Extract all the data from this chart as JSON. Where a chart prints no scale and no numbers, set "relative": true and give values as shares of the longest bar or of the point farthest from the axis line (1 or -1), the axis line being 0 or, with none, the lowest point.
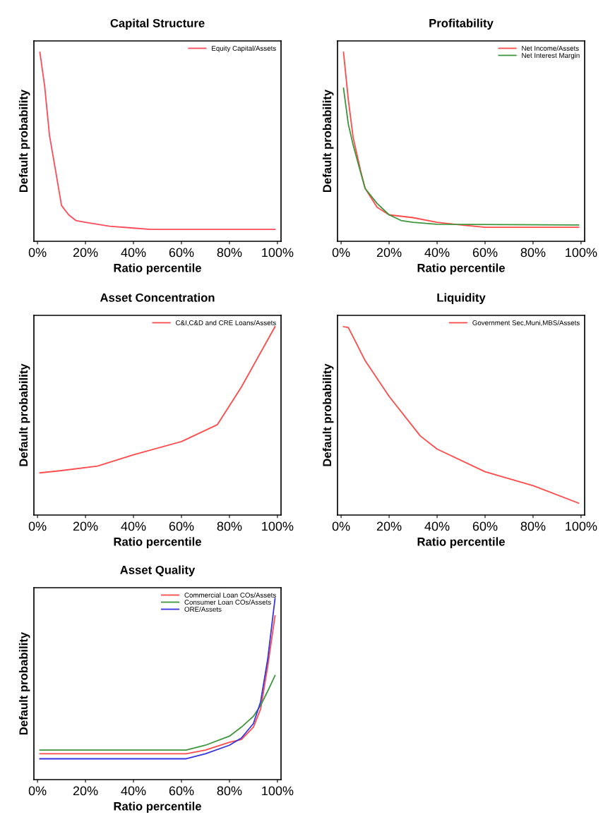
{
  "chart_data": [
    {
      "type": "line",
      "title": "Capital Structure",
      "xlabel": "Ratio percentile",
      "ylabel": "Default probability",
      "relative": true,
      "legend": "top right",
      "grid": false,
      "xlim": [
        -1.5,
        101.5
      ],
      "xticks": [
        {
          "value": 0,
          "label": "0%"
        },
        {
          "value": 20,
          "label": "20%"
        },
        {
          "value": 40,
          "label": "40%"
        },
        {
          "value": 60,
          "label": "60%"
        },
        {
          "value": 80,
          "label": "80%"
        },
        {
          "value": 100,
          "label": "100%"
        }
      ],
      "x": [
        1,
        3,
        5,
        8,
        10,
        13,
        16,
        20,
        30,
        40,
        47,
        99
      ],
      "series": [
        {
          "name": "Equity Capital/Assets",
          "color": "#ff4a5a",
          "values": [
            1.0,
            0.82,
            0.56,
            0.34,
            0.19,
            0.14,
            0.11,
            0.1,
            0.08,
            0.07,
            0.063,
            0.063
          ]
        }
      ]
    },
    {
      "type": "line",
      "title": "Profitability",
      "xlabel": "Ratio percentile",
      "ylabel": "Default probability",
      "relative": true,
      "legend": "top right",
      "grid": false,
      "xlim": [
        -1.5,
        101.5
      ],
      "xticks": [
        {
          "value": 0,
          "label": "0%"
        },
        {
          "value": 20,
          "label": "20%"
        },
        {
          "value": 40,
          "label": "40%"
        },
        {
          "value": 60,
          "label": "60%"
        },
        {
          "value": 80,
          "label": "80%"
        },
        {
          "value": 100,
          "label": "100%"
        }
      ],
      "series": [
        {
          "name": "Net Income/Assets",
          "color": "#ff4a4a",
          "x": [
            1,
            3,
            5,
            8,
            10,
            15,
            20,
            30,
            40,
            50,
            60,
            99
          ],
          "values": [
            1.0,
            0.75,
            0.55,
            0.38,
            0.28,
            0.18,
            0.14,
            0.125,
            0.1,
            0.086,
            0.074,
            0.074
          ]
        },
        {
          "name": "Net Interest Margin",
          "color": "#3c963c",
          "x": [
            1,
            3,
            5,
            8,
            10,
            15,
            20,
            25,
            30,
            40,
            99
          ],
          "values": [
            0.81,
            0.62,
            0.51,
            0.37,
            0.28,
            0.2,
            0.14,
            0.11,
            0.1,
            0.09,
            0.086
          ]
        }
      ]
    },
    {
      "type": "line",
      "title": "Asset Concentration",
      "xlabel": "Ratio percentile",
      "ylabel": "Default probability",
      "relative": true,
      "legend": "top right",
      "grid": false,
      "xlim": [
        -1.5,
        101.5
      ],
      "xticks": [
        {
          "value": 0,
          "label": "0%"
        },
        {
          "value": 20,
          "label": "20%"
        },
        {
          "value": 40,
          "label": "40%"
        },
        {
          "value": 60,
          "label": "60%"
        },
        {
          "value": 80,
          "label": "80%"
        },
        {
          "value": 100,
          "label": "100%"
        }
      ],
      "x": [
        1,
        10,
        25,
        40,
        60,
        75,
        85,
        92,
        99
      ],
      "series": [
        {
          "name": "C&I,C&D and CRE Loans/Assets",
          "color": "#ff4a4a",
          "values": [
            0.224,
            0.236,
            0.26,
            0.32,
            0.39,
            0.48,
            0.68,
            0.84,
            1.0
          ]
        }
      ]
    },
    {
      "type": "line",
      "title": "Liquidity",
      "xlabel": "Ratio percentile",
      "ylabel": "Default probability",
      "relative": true,
      "legend": "top right",
      "grid": false,
      "xlim": [
        -1.5,
        101.5
      ],
      "xticks": [
        {
          "value": 0,
          "label": "0%"
        },
        {
          "value": 20,
          "label": "20%"
        },
        {
          "value": 40,
          "label": "40%"
        },
        {
          "value": 60,
          "label": "60%"
        },
        {
          "value": 80,
          "label": "80%"
        },
        {
          "value": 100,
          "label": "100%"
        }
      ],
      "x": [
        1,
        3,
        10,
        20,
        33,
        40,
        60,
        80,
        99
      ],
      "series": [
        {
          "name": "Government Sec,Muni,MBS/Assets",
          "color": "#ff4a4a",
          "values": [
            1.0,
            0.996,
            0.82,
            0.63,
            0.42,
            0.35,
            0.23,
            0.156,
            0.063
          ]
        }
      ]
    },
    {
      "type": "line",
      "title": "Asset Quality",
      "xlabel": "Ratio percentile",
      "ylabel": "Default probability",
      "relative": true,
      "legend": "top right",
      "grid": false,
      "xlim": [
        -1.5,
        101.5
      ],
      "xticks": [
        {
          "value": 0,
          "label": "0%"
        },
        {
          "value": 20,
          "label": "20%"
        },
        {
          "value": 40,
          "label": "40%"
        },
        {
          "value": 60,
          "label": "60%"
        },
        {
          "value": 80,
          "label": "80%"
        },
        {
          "value": 100,
          "label": "100%"
        }
      ],
      "x": [
        1,
        62,
        70,
        80,
        85,
        90,
        93,
        96,
        99
      ],
      "series": [
        {
          "name": "Commercial Loan COs/Assets",
          "color": "#ff4a4a",
          "values": [
            0.143,
            0.143,
            0.163,
            0.206,
            0.222,
            0.29,
            0.39,
            0.63,
            0.905
          ]
        },
        {
          "name": "Consumer Loan COs/Assets",
          "color": "#3c963c",
          "values": [
            0.163,
            0.163,
            0.19,
            0.24,
            0.29,
            0.35,
            0.41,
            0.49,
            0.575
          ]
        },
        {
          "name": "ORE/Assets",
          "color": "#3434e0",
          "values": [
            0.115,
            0.115,
            0.143,
            0.19,
            0.23,
            0.31,
            0.43,
            0.67,
            1.0
          ]
        }
      ]
    }
  ]
}
